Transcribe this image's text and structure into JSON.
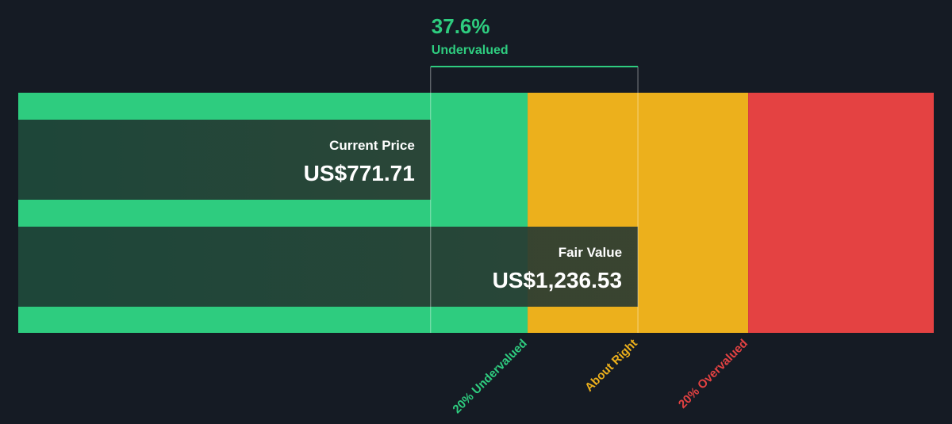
{
  "chart_data": {
    "type": "valuation",
    "headline": {
      "value": 37.6,
      "value_label": "37.6%",
      "label": "Undervalued",
      "color": "#2ecc7f"
    },
    "bars": [
      {
        "name": "Current Price",
        "value": 771.71,
        "value_label": "US$771.71"
      },
      {
        "name": "Fair Value",
        "value": 1236.53,
        "value_label": "US$1,236.53"
      }
    ],
    "zones": [
      {
        "start": -153,
        "color": "#2ecc7f"
      },
      {
        "start": 989.22,
        "color": "#ecb01c"
      },
      {
        "start": 1483.84,
        "color": "#e44242"
      }
    ],
    "zone_labels": [
      {
        "label": "20% Undervalued",
        "value": 989.22,
        "color": "#2ecc7f"
      },
      {
        "label": "About Right",
        "value": 1236.53,
        "color": "#ecb01c"
      },
      {
        "label": "20% Overvalued",
        "value": 1483.84,
        "color": "#e44242"
      }
    ],
    "xlim": [
      -153,
      1900
    ]
  }
}
